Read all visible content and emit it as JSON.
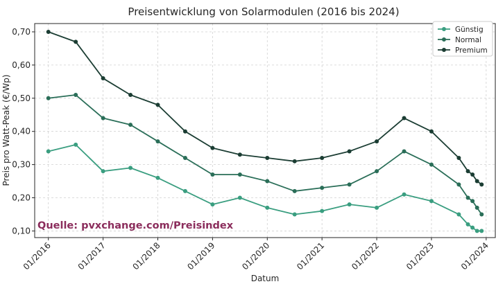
{
  "chart_data": {
    "type": "line",
    "title": "Preisentwicklung von Solarmodulen (2016 bis 2024)",
    "xlabel": "Datum",
    "ylabel": "Preis pro Watt-Peak (€/Wp)",
    "x_ticks": [
      "01/2016",
      "01/2017",
      "01/2018",
      "01/2019",
      "01/2020",
      "01/2021",
      "01/2022",
      "01/2023",
      "01/2024"
    ],
    "y_ticks": [
      "0,10",
      "0,20",
      "0,30",
      "0,40",
      "0,50",
      "0,60",
      "0,70"
    ],
    "xlim": [
      "2015-10",
      "2024-03"
    ],
    "ylim": [
      0.08,
      0.725
    ],
    "grid": true,
    "legend_position": "top-right",
    "annotation": "Quelle: pvxchange.com/Preisindex",
    "x": [
      "2016-01",
      "2016-07",
      "2017-01",
      "2017-07",
      "2018-01",
      "2018-07",
      "2019-01",
      "2019-07",
      "2020-01",
      "2020-07",
      "2021-01",
      "2021-07",
      "2022-01",
      "2022-07",
      "2023-01",
      "2023-07",
      "2023-09",
      "2023-10",
      "2023-11",
      "2023-12"
    ],
    "series": [
      {
        "name": "Günstig",
        "color": "#3a9e80",
        "values": [
          0.34,
          0.36,
          0.28,
          0.29,
          0.26,
          0.22,
          0.18,
          0.2,
          0.17,
          0.15,
          0.16,
          0.18,
          0.17,
          0.21,
          0.19,
          0.15,
          0.12,
          0.11,
          0.1,
          0.1
        ]
      },
      {
        "name": "Normal",
        "color": "#2a6e58",
        "values": [
          0.5,
          0.51,
          0.44,
          0.42,
          0.37,
          0.32,
          0.27,
          0.27,
          0.25,
          0.22,
          0.23,
          0.24,
          0.28,
          0.34,
          0.3,
          0.24,
          0.2,
          0.19,
          0.17,
          0.15
        ]
      },
      {
        "name": "Premium",
        "color": "#1b3d33",
        "values": [
          0.7,
          0.67,
          0.56,
          0.51,
          0.48,
          0.4,
          0.35,
          0.33,
          0.32,
          0.31,
          0.32,
          0.34,
          0.37,
          0.44,
          0.4,
          0.32,
          0.28,
          0.27,
          0.25,
          0.24
        ]
      }
    ]
  }
}
